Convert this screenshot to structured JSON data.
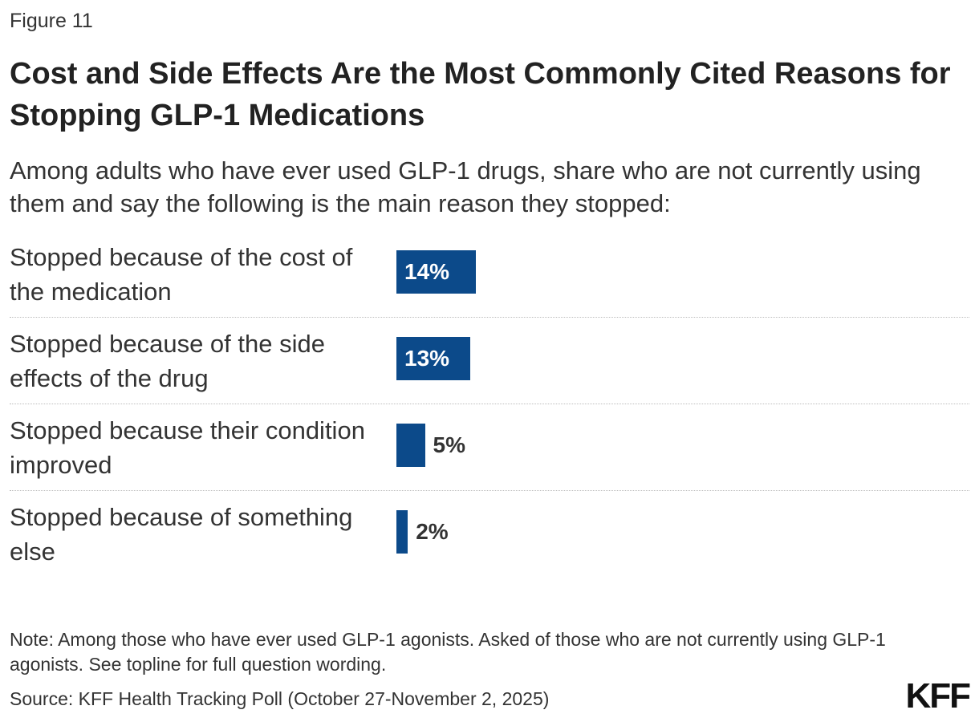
{
  "figure_label": "Figure 11",
  "title": "Cost and Side Effects Are the Most Commonly Cited Reasons for Stopping GLP-1 Medications",
  "subtitle": "Among adults who have ever used GLP-1 drugs, share who are not currently using them and say the following is the main reason they stopped:",
  "chart_data": {
    "type": "bar",
    "orientation": "horizontal",
    "categories": [
      "Stopped because of the cost of the medication",
      "Stopped because of the side effects of the drug",
      "Stopped because their condition improved",
      "Stopped because of something else"
    ],
    "values": [
      14,
      13,
      5,
      2
    ],
    "value_labels": [
      "14%",
      "13%",
      "5%",
      "2%"
    ],
    "unit": "%",
    "bar_color": "#0c4a8a",
    "grid": false
  },
  "note": "Note: Among those who have ever used GLP-1 agonists. Asked of those who are not currently using GLP-1 agonists. See topline for full question wording.",
  "source": "Source: KFF Health Tracking Poll (October 27-November 2, 2025)",
  "logo": "KFF"
}
